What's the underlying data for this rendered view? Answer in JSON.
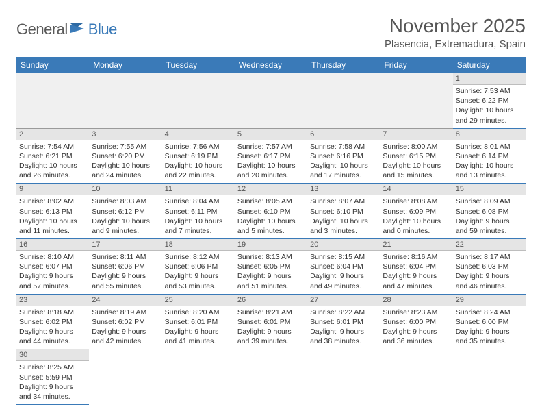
{
  "brand": {
    "part1": "General",
    "part2": "Blue"
  },
  "title": "November 2025",
  "location": "Plasencia, Extremadura, Spain",
  "colors": {
    "header_bg": "#3a7ab8",
    "header_text": "#ffffff",
    "daynum_bg": "#e5e5e5",
    "row_divider": "#3a7ab8",
    "text": "#333333",
    "title_text": "#555555",
    "logo_gray": "#5a5a5a",
    "logo_blue": "#3a7ab8",
    "spacer_bg": "#f0f0f0"
  },
  "typography": {
    "title_fontsize": 28,
    "location_fontsize": 15,
    "dayhead_fontsize": 12,
    "daynum_fontsize": 11,
    "body_fontsize": 10.5
  },
  "day_headers": [
    "Sunday",
    "Monday",
    "Tuesday",
    "Wednesday",
    "Thursday",
    "Friday",
    "Saturday"
  ],
  "weeks": [
    [
      null,
      null,
      null,
      null,
      null,
      null,
      {
        "n": "1",
        "sr": "Sunrise: 7:53 AM",
        "ss": "Sunset: 6:22 PM",
        "d1": "Daylight: 10 hours",
        "d2": "and 29 minutes."
      }
    ],
    [
      {
        "n": "2",
        "sr": "Sunrise: 7:54 AM",
        "ss": "Sunset: 6:21 PM",
        "d1": "Daylight: 10 hours",
        "d2": "and 26 minutes."
      },
      {
        "n": "3",
        "sr": "Sunrise: 7:55 AM",
        "ss": "Sunset: 6:20 PM",
        "d1": "Daylight: 10 hours",
        "d2": "and 24 minutes."
      },
      {
        "n": "4",
        "sr": "Sunrise: 7:56 AM",
        "ss": "Sunset: 6:19 PM",
        "d1": "Daylight: 10 hours",
        "d2": "and 22 minutes."
      },
      {
        "n": "5",
        "sr": "Sunrise: 7:57 AM",
        "ss": "Sunset: 6:17 PM",
        "d1": "Daylight: 10 hours",
        "d2": "and 20 minutes."
      },
      {
        "n": "6",
        "sr": "Sunrise: 7:58 AM",
        "ss": "Sunset: 6:16 PM",
        "d1": "Daylight: 10 hours",
        "d2": "and 17 minutes."
      },
      {
        "n": "7",
        "sr": "Sunrise: 8:00 AM",
        "ss": "Sunset: 6:15 PM",
        "d1": "Daylight: 10 hours",
        "d2": "and 15 minutes."
      },
      {
        "n": "8",
        "sr": "Sunrise: 8:01 AM",
        "ss": "Sunset: 6:14 PM",
        "d1": "Daylight: 10 hours",
        "d2": "and 13 minutes."
      }
    ],
    [
      {
        "n": "9",
        "sr": "Sunrise: 8:02 AM",
        "ss": "Sunset: 6:13 PM",
        "d1": "Daylight: 10 hours",
        "d2": "and 11 minutes."
      },
      {
        "n": "10",
        "sr": "Sunrise: 8:03 AM",
        "ss": "Sunset: 6:12 PM",
        "d1": "Daylight: 10 hours",
        "d2": "and 9 minutes."
      },
      {
        "n": "11",
        "sr": "Sunrise: 8:04 AM",
        "ss": "Sunset: 6:11 PM",
        "d1": "Daylight: 10 hours",
        "d2": "and 7 minutes."
      },
      {
        "n": "12",
        "sr": "Sunrise: 8:05 AM",
        "ss": "Sunset: 6:10 PM",
        "d1": "Daylight: 10 hours",
        "d2": "and 5 minutes."
      },
      {
        "n": "13",
        "sr": "Sunrise: 8:07 AM",
        "ss": "Sunset: 6:10 PM",
        "d1": "Daylight: 10 hours",
        "d2": "and 3 minutes."
      },
      {
        "n": "14",
        "sr": "Sunrise: 8:08 AM",
        "ss": "Sunset: 6:09 PM",
        "d1": "Daylight: 10 hours",
        "d2": "and 0 minutes."
      },
      {
        "n": "15",
        "sr": "Sunrise: 8:09 AM",
        "ss": "Sunset: 6:08 PM",
        "d1": "Daylight: 9 hours",
        "d2": "and 59 minutes."
      }
    ],
    [
      {
        "n": "16",
        "sr": "Sunrise: 8:10 AM",
        "ss": "Sunset: 6:07 PM",
        "d1": "Daylight: 9 hours",
        "d2": "and 57 minutes."
      },
      {
        "n": "17",
        "sr": "Sunrise: 8:11 AM",
        "ss": "Sunset: 6:06 PM",
        "d1": "Daylight: 9 hours",
        "d2": "and 55 minutes."
      },
      {
        "n": "18",
        "sr": "Sunrise: 8:12 AM",
        "ss": "Sunset: 6:06 PM",
        "d1": "Daylight: 9 hours",
        "d2": "and 53 minutes."
      },
      {
        "n": "19",
        "sr": "Sunrise: 8:13 AM",
        "ss": "Sunset: 6:05 PM",
        "d1": "Daylight: 9 hours",
        "d2": "and 51 minutes."
      },
      {
        "n": "20",
        "sr": "Sunrise: 8:15 AM",
        "ss": "Sunset: 6:04 PM",
        "d1": "Daylight: 9 hours",
        "d2": "and 49 minutes."
      },
      {
        "n": "21",
        "sr": "Sunrise: 8:16 AM",
        "ss": "Sunset: 6:04 PM",
        "d1": "Daylight: 9 hours",
        "d2": "and 47 minutes."
      },
      {
        "n": "22",
        "sr": "Sunrise: 8:17 AM",
        "ss": "Sunset: 6:03 PM",
        "d1": "Daylight: 9 hours",
        "d2": "and 46 minutes."
      }
    ],
    [
      {
        "n": "23",
        "sr": "Sunrise: 8:18 AM",
        "ss": "Sunset: 6:02 PM",
        "d1": "Daylight: 9 hours",
        "d2": "and 44 minutes."
      },
      {
        "n": "24",
        "sr": "Sunrise: 8:19 AM",
        "ss": "Sunset: 6:02 PM",
        "d1": "Daylight: 9 hours",
        "d2": "and 42 minutes."
      },
      {
        "n": "25",
        "sr": "Sunrise: 8:20 AM",
        "ss": "Sunset: 6:01 PM",
        "d1": "Daylight: 9 hours",
        "d2": "and 41 minutes."
      },
      {
        "n": "26",
        "sr": "Sunrise: 8:21 AM",
        "ss": "Sunset: 6:01 PM",
        "d1": "Daylight: 9 hours",
        "d2": "and 39 minutes."
      },
      {
        "n": "27",
        "sr": "Sunrise: 8:22 AM",
        "ss": "Sunset: 6:01 PM",
        "d1": "Daylight: 9 hours",
        "d2": "and 38 minutes."
      },
      {
        "n": "28",
        "sr": "Sunrise: 8:23 AM",
        "ss": "Sunset: 6:00 PM",
        "d1": "Daylight: 9 hours",
        "d2": "and 36 minutes."
      },
      {
        "n": "29",
        "sr": "Sunrise: 8:24 AM",
        "ss": "Sunset: 6:00 PM",
        "d1": "Daylight: 9 hours",
        "d2": "and 35 minutes."
      }
    ],
    [
      {
        "n": "30",
        "sr": "Sunrise: 8:25 AM",
        "ss": "Sunset: 5:59 PM",
        "d1": "Daylight: 9 hours",
        "d2": "and 34 minutes."
      },
      null,
      null,
      null,
      null,
      null,
      null
    ]
  ]
}
